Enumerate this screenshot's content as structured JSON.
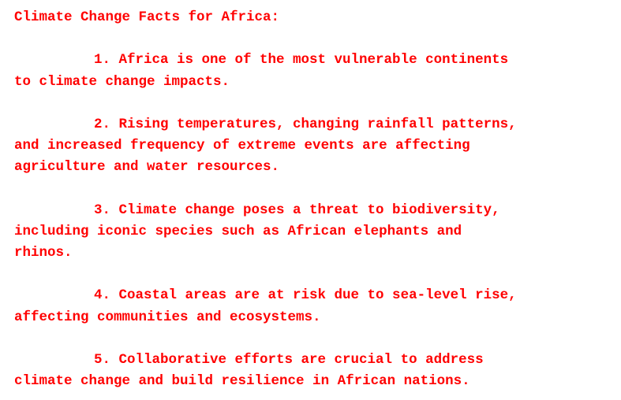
{
  "document": {
    "title": "Climate Change Facts for Africa:",
    "text_color": "#ff0000",
    "background_color": "#ffffff",
    "facts": [
      {
        "lines": [
          "1. Africa is one of the most vulnerable continents",
          "to climate change impacts."
        ]
      },
      {
        "lines": [
          "2. Rising temperatures, changing rainfall patterns,",
          "and increased frequency of extreme events are affecting",
          "agriculture and water resources."
        ]
      },
      {
        "lines": [
          "3. Climate change poses a threat to biodiversity,",
          "including iconic species such as African elephants and",
          "rhinos."
        ]
      },
      {
        "lines": [
          "4. Coastal areas are at risk due to sea-level rise,",
          "affecting communities and ecosystems."
        ]
      },
      {
        "lines": [
          "5. Collaborative efforts are crucial to address",
          "climate change and build resilience in African nations."
        ]
      }
    ]
  }
}
